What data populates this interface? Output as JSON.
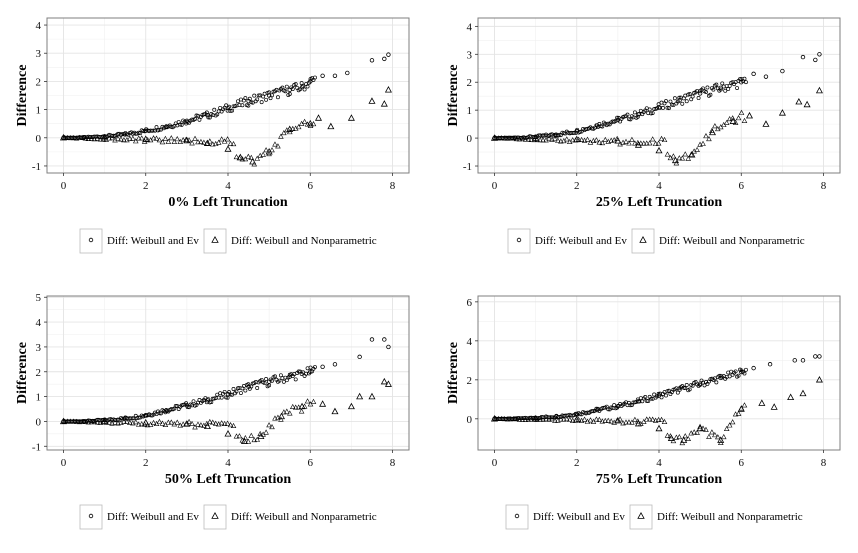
{
  "chart_data": [
    {
      "type": "scatter",
      "xlabel": "0% Left Truncation",
      "ylabel": "Difference",
      "xlim": [
        -0.4,
        8.4
      ],
      "ylim": [
        -1.25,
        4.25
      ],
      "xticks": [
        0,
        2,
        4,
        6,
        8
      ],
      "yticks": [
        -1,
        0,
        1,
        2,
        3,
        4
      ],
      "grid": true,
      "legend": "bottom",
      "series": [
        {
          "name": "Diff: Weibull and Ev",
          "marker": "circle",
          "points": [
            [
              0.0,
              0.0
            ],
            [
              0.5,
              0.01
            ],
            [
              1.0,
              0.05
            ],
            [
              1.5,
              0.12
            ],
            [
              2.0,
              0.25
            ],
            [
              2.5,
              0.4
            ],
            [
              3.0,
              0.6
            ],
            [
              3.5,
              0.8
            ],
            [
              4.0,
              1.05
            ],
            [
              4.5,
              1.3
            ],
            [
              5.0,
              1.5
            ],
            [
              5.5,
              1.7
            ],
            [
              5.8,
              1.8
            ],
            [
              6.0,
              2.0
            ],
            [
              6.3,
              2.2
            ],
            [
              6.6,
              2.2
            ],
            [
              6.9,
              2.3
            ],
            [
              7.5,
              2.75
            ],
            [
              7.8,
              2.8
            ],
            [
              7.9,
              2.95
            ]
          ]
        },
        {
          "name": "Diff: Weibull and Nonparametric",
          "marker": "triangle",
          "points": [
            [
              0.0,
              0.0
            ],
            [
              1.0,
              0.0
            ],
            [
              2.0,
              -0.05
            ],
            [
              3.0,
              -0.1
            ],
            [
              3.5,
              -0.2
            ],
            [
              4.0,
              -0.4
            ],
            [
              4.3,
              -0.7
            ],
            [
              4.6,
              -0.85
            ],
            [
              5.0,
              -0.5
            ],
            [
              5.5,
              0.3
            ],
            [
              6.0,
              0.5
            ],
            [
              6.2,
              0.7
            ],
            [
              6.5,
              0.4
            ],
            [
              7.0,
              0.7
            ],
            [
              7.5,
              1.3
            ],
            [
              7.8,
              1.2
            ],
            [
              7.9,
              1.7
            ]
          ]
        }
      ]
    },
    {
      "type": "scatter",
      "xlabel": "25% Left Truncation",
      "ylabel": "Difference",
      "xlim": [
        -0.4,
        8.4
      ],
      "ylim": [
        -1.25,
        4.3
      ],
      "xticks": [
        0,
        2,
        4,
        6,
        8
      ],
      "yticks": [
        -1,
        0,
        1,
        2,
        3,
        4
      ],
      "grid": true,
      "legend": "bottom",
      "series": [
        {
          "name": "Diff: Weibull and Ev",
          "marker": "circle",
          "points": [
            [
              0.0,
              0.0
            ],
            [
              0.5,
              0.01
            ],
            [
              1.0,
              0.05
            ],
            [
              1.5,
              0.12
            ],
            [
              2.0,
              0.25
            ],
            [
              2.5,
              0.45
            ],
            [
              3.0,
              0.65
            ],
            [
              3.5,
              0.85
            ],
            [
              4.0,
              1.1
            ],
            [
              4.5,
              1.35
            ],
            [
              5.0,
              1.6
            ],
            [
              5.5,
              1.8
            ],
            [
              6.0,
              2.0
            ],
            [
              6.3,
              2.3
            ],
            [
              6.6,
              2.2
            ],
            [
              7.0,
              2.4
            ],
            [
              7.5,
              2.9
            ],
            [
              7.8,
              2.8
            ],
            [
              7.9,
              3.0
            ]
          ]
        },
        {
          "name": "Diff: Weibull and Nonparametric",
          "marker": "triangle",
          "points": [
            [
              0.0,
              0.0
            ],
            [
              1.0,
              0.0
            ],
            [
              2.0,
              -0.05
            ],
            [
              3.0,
              -0.1
            ],
            [
              3.5,
              -0.25
            ],
            [
              4.0,
              -0.45
            ],
            [
              4.4,
              -0.8
            ],
            [
              4.8,
              -0.6
            ],
            [
              5.3,
              0.2
            ],
            [
              5.8,
              0.6
            ],
            [
              6.2,
              0.8
            ],
            [
              6.6,
              0.5
            ],
            [
              7.0,
              0.9
            ],
            [
              7.4,
              1.3
            ],
            [
              7.6,
              1.2
            ],
            [
              7.9,
              1.7
            ]
          ]
        }
      ]
    },
    {
      "type": "scatter",
      "xlabel": "50% Left Truncation",
      "ylabel": "Difference",
      "xlim": [
        -0.4,
        8.4
      ],
      "ylim": [
        -1.15,
        5.05
      ],
      "xticks": [
        0,
        2,
        4,
        6,
        8
      ],
      "yticks": [
        -1,
        0,
        1,
        2,
        3,
        4,
        5
      ],
      "grid": true,
      "legend": "bottom",
      "series": [
        {
          "name": "Diff: Weibull and Ev",
          "marker": "circle",
          "points": [
            [
              0.0,
              0.0
            ],
            [
              0.5,
              0.01
            ],
            [
              1.0,
              0.05
            ],
            [
              1.5,
              0.12
            ],
            [
              2.0,
              0.25
            ],
            [
              2.5,
              0.45
            ],
            [
              3.0,
              0.65
            ],
            [
              3.5,
              0.85
            ],
            [
              4.0,
              1.1
            ],
            [
              4.5,
              1.4
            ],
            [
              5.0,
              1.6
            ],
            [
              5.5,
              1.8
            ],
            [
              6.0,
              2.0
            ],
            [
              6.3,
              2.2
            ],
            [
              6.6,
              2.3
            ],
            [
              7.2,
              2.6
            ],
            [
              7.5,
              3.3
            ],
            [
              7.8,
              3.3
            ],
            [
              7.9,
              3.0
            ]
          ]
        },
        {
          "name": "Diff: Weibull and Nonparametric",
          "marker": "triangle",
          "points": [
            [
              0.0,
              0.0
            ],
            [
              1.0,
              0.0
            ],
            [
              2.0,
              -0.05
            ],
            [
              3.0,
              -0.1
            ],
            [
              3.5,
              -0.2
            ],
            [
              4.0,
              -0.5
            ],
            [
              4.4,
              -0.8
            ],
            [
              4.8,
              -0.6
            ],
            [
              5.3,
              0.2
            ],
            [
              5.8,
              0.6
            ],
            [
              6.3,
              0.7
            ],
            [
              6.6,
              0.4
            ],
            [
              7.0,
              0.6
            ],
            [
              7.2,
              1.0
            ],
            [
              7.5,
              1.0
            ],
            [
              7.8,
              1.6
            ],
            [
              7.9,
              1.5
            ]
          ]
        }
      ]
    },
    {
      "type": "scatter",
      "xlabel": "75% Left Truncation",
      "ylabel": "Difference",
      "xlim": [
        -0.4,
        8.4
      ],
      "ylim": [
        -1.6,
        6.3
      ],
      "xticks": [
        0,
        2,
        4,
        6,
        8
      ],
      "yticks": [
        0,
        2,
        4,
        6
      ],
      "grid": true,
      "legend": "bottom",
      "series": [
        {
          "name": "Diff: Weibull and Ev",
          "marker": "circle",
          "points": [
            [
              0.0,
              0.0
            ],
            [
              0.5,
              0.01
            ],
            [
              1.0,
              0.05
            ],
            [
              1.5,
              0.12
            ],
            [
              2.0,
              0.25
            ],
            [
              2.5,
              0.45
            ],
            [
              3.0,
              0.65
            ],
            [
              3.5,
              0.9
            ],
            [
              4.0,
              1.2
            ],
            [
              4.5,
              1.5
            ],
            [
              5.0,
              1.8
            ],
            [
              5.5,
              2.1
            ],
            [
              6.0,
              2.4
            ],
            [
              6.3,
              2.6
            ],
            [
              6.7,
              2.8
            ],
            [
              7.3,
              3.0
            ],
            [
              7.5,
              3.0
            ],
            [
              7.8,
              3.2
            ],
            [
              7.9,
              3.2
            ]
          ]
        },
        {
          "name": "Diff: Weibull and Nonparametric",
          "marker": "triangle",
          "points": [
            [
              0.0,
              0.0
            ],
            [
              1.0,
              0.0
            ],
            [
              2.0,
              -0.05
            ],
            [
              3.0,
              -0.1
            ],
            [
              3.5,
              -0.25
            ],
            [
              4.0,
              -0.5
            ],
            [
              4.3,
              -1.0
            ],
            [
              4.6,
              -1.1
            ],
            [
              5.0,
              -0.5
            ],
            [
              5.5,
              -1.1
            ],
            [
              6.0,
              0.5
            ],
            [
              6.5,
              0.8
            ],
            [
              6.8,
              0.6
            ],
            [
              7.2,
              1.1
            ],
            [
              7.5,
              1.3
            ],
            [
              7.9,
              2.0
            ]
          ]
        }
      ]
    }
  ]
}
